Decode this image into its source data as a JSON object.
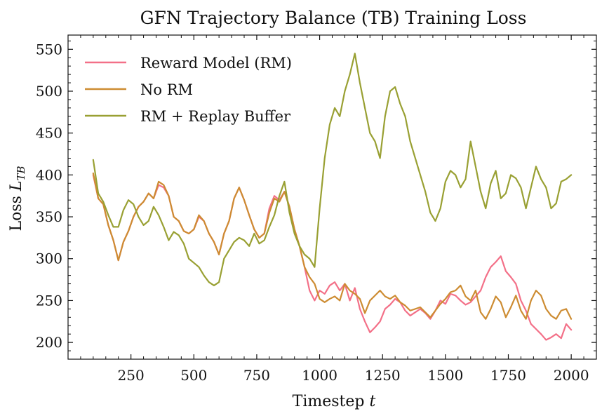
{
  "chart_data": {
    "type": "line",
    "title": "GFN Trajectory Balance (TB) Training Loss",
    "xlabel": "Timestep t",
    "ylabel": "Loss L_TB",
    "xlim": [
      0,
      2100
    ],
    "ylim": [
      180,
      567
    ],
    "xticks": [
      250,
      500,
      750,
      1000,
      1250,
      1500,
      1750,
      2000
    ],
    "yticks": [
      200,
      250,
      300,
      350,
      400,
      450,
      500,
      550
    ],
    "grid": false,
    "legend_position": "top-left",
    "series": [
      {
        "name": "Reward Model (RM)",
        "color": "#f37088",
        "x": [
          100,
          120,
          140,
          160,
          180,
          200,
          220,
          240,
          260,
          280,
          300,
          320,
          340,
          360,
          380,
          400,
          420,
          440,
          460,
          480,
          500,
          520,
          540,
          560,
          580,
          600,
          620,
          640,
          660,
          680,
          700,
          720,
          740,
          760,
          780,
          800,
          820,
          840,
          860,
          880,
          900,
          920,
          940,
          960,
          980,
          1000,
          1020,
          1040,
          1060,
          1080,
          1100,
          1120,
          1140,
          1160,
          1180,
          1200,
          1220,
          1240,
          1260,
          1280,
          1300,
          1320,
          1340,
          1360,
          1380,
          1400,
          1420,
          1440,
          1460,
          1480,
          1500,
          1520,
          1540,
          1560,
          1580,
          1600,
          1620,
          1640,
          1660,
          1680,
          1700,
          1720,
          1740,
          1760,
          1780,
          1800,
          1820,
          1840,
          1860,
          1880,
          1900,
          1920,
          1940,
          1960,
          1980,
          2000
        ],
        "y": [
          400,
          372,
          365,
          340,
          322,
          298,
          320,
          333,
          350,
          362,
          368,
          378,
          372,
          388,
          385,
          375,
          350,
          345,
          333,
          330,
          335,
          350,
          345,
          330,
          320,
          305,
          330,
          345,
          372,
          385,
          370,
          352,
          335,
          325,
          330,
          360,
          375,
          370,
          380,
          362,
          335,
          315,
          290,
          262,
          250,
          262,
          258,
          268,
          272,
          262,
          270,
          250,
          265,
          240,
          225,
          212,
          218,
          225,
          240,
          245,
          252,
          248,
          238,
          232,
          236,
          240,
          235,
          228,
          238,
          250,
          246,
          258,
          256,
          250,
          245,
          248,
          255,
          262,
          278,
          290,
          296,
          303,
          285,
          278,
          270,
          250,
          238,
          222,
          216,
          210,
          203,
          206,
          210,
          205,
          222,
          215
        ]
      },
      {
        "name": "No RM",
        "color": "#cd8c32",
        "x": [
          100,
          120,
          140,
          160,
          180,
          200,
          220,
          240,
          260,
          280,
          300,
          320,
          340,
          360,
          380,
          400,
          420,
          440,
          460,
          480,
          500,
          520,
          540,
          560,
          580,
          600,
          620,
          640,
          660,
          680,
          700,
          720,
          740,
          760,
          780,
          800,
          820,
          840,
          860,
          880,
          900,
          920,
          940,
          960,
          980,
          1000,
          1020,
          1040,
          1060,
          1080,
          1100,
          1120,
          1140,
          1160,
          1180,
          1200,
          1220,
          1240,
          1260,
          1280,
          1300,
          1320,
          1340,
          1360,
          1380,
          1400,
          1420,
          1440,
          1460,
          1480,
          1500,
          1520,
          1540,
          1560,
          1580,
          1600,
          1620,
          1640,
          1660,
          1680,
          1700,
          1720,
          1740,
          1760,
          1780,
          1800,
          1820,
          1840,
          1860,
          1880,
          1900,
          1920,
          1940,
          1960,
          1980,
          2000
        ],
        "y": [
          402,
          372,
          365,
          340,
          322,
          298,
          320,
          333,
          350,
          362,
          368,
          378,
          372,
          392,
          388,
          375,
          350,
          345,
          333,
          330,
          335,
          352,
          345,
          330,
          320,
          305,
          330,
          345,
          372,
          385,
          370,
          352,
          335,
          325,
          330,
          355,
          372,
          368,
          380,
          362,
          335,
          315,
          290,
          278,
          270,
          252,
          248,
          252,
          255,
          250,
          270,
          262,
          258,
          252,
          235,
          250,
          256,
          262,
          255,
          252,
          256,
          248,
          244,
          238,
          240,
          242,
          236,
          230,
          238,
          246,
          252,
          260,
          262,
          268,
          255,
          250,
          262,
          236,
          228,
          240,
          255,
          248,
          230,
          242,
          256,
          238,
          228,
          250,
          262,
          256,
          240,
          232,
          228,
          238,
          240,
          228
        ]
      },
      {
        "name": "RM + Replay Buffer",
        "color": "#99a033",
        "x": [
          100,
          120,
          140,
          160,
          180,
          200,
          220,
          240,
          260,
          280,
          300,
          320,
          340,
          360,
          380,
          400,
          420,
          440,
          460,
          480,
          500,
          520,
          540,
          560,
          580,
          600,
          620,
          640,
          660,
          680,
          700,
          720,
          740,
          760,
          780,
          800,
          820,
          840,
          860,
          880,
          900,
          920,
          940,
          960,
          980,
          1000,
          1020,
          1040,
          1060,
          1080,
          1100,
          1120,
          1140,
          1160,
          1180,
          1200,
          1220,
          1240,
          1260,
          1280,
          1300,
          1320,
          1340,
          1360,
          1380,
          1400,
          1420,
          1440,
          1460,
          1480,
          1500,
          1520,
          1540,
          1560,
          1580,
          1600,
          1620,
          1640,
          1660,
          1680,
          1700,
          1720,
          1740,
          1760,
          1780,
          1800,
          1820,
          1840,
          1860,
          1880,
          1900,
          1920,
          1940,
          1960,
          1980,
          2000
        ],
        "y": [
          418,
          378,
          368,
          352,
          338,
          338,
          358,
          370,
          365,
          350,
          340,
          345,
          362,
          352,
          338,
          322,
          332,
          328,
          318,
          300,
          295,
          290,
          280,
          272,
          268,
          272,
          300,
          310,
          320,
          325,
          322,
          315,
          330,
          318,
          322,
          338,
          352,
          375,
          392,
          355,
          330,
          315,
          305,
          300,
          290,
          360,
          420,
          460,
          480,
          470,
          500,
          520,
          545,
          510,
          480,
          450,
          440,
          420,
          470,
          500,
          505,
          485,
          470,
          440,
          420,
          400,
          380,
          355,
          345,
          360,
          392,
          405,
          400,
          385,
          395,
          440,
          410,
          380,
          360,
          390,
          405,
          372,
          378,
          400,
          396,
          385,
          360,
          385,
          410,
          395,
          385,
          360,
          366,
          392,
          395,
          400
        ]
      }
    ]
  }
}
